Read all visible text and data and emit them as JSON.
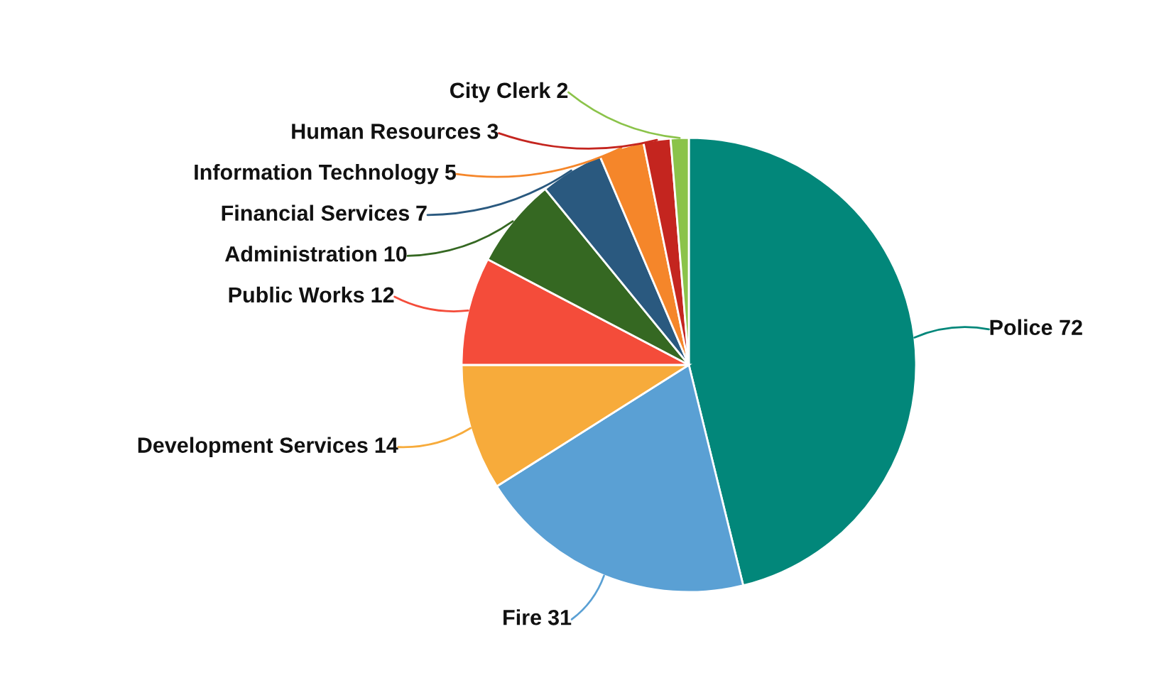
{
  "chart_data": {
    "type": "pie",
    "categories": [
      "Police",
      "Fire",
      "Development Services",
      "Public Works",
      "Administration",
      "Financial Services",
      "Information Technology",
      "Human Resources",
      "City Clerk"
    ],
    "values": [
      72,
      31,
      14,
      12,
      10,
      7,
      5,
      3,
      2
    ],
    "colors": [
      "#02877a",
      "#5aa0d4",
      "#f7ab3b",
      "#f44c3a",
      "#356822",
      "#2a597f",
      "#f5862a",
      "#c4251f",
      "#8bc34a"
    ],
    "data_labels": true
  }
}
